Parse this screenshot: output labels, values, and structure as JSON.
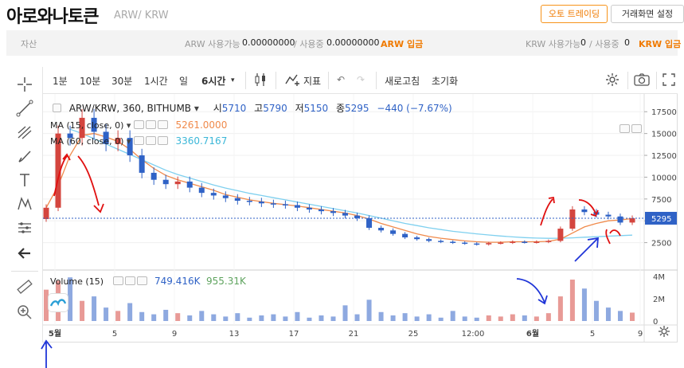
{
  "header": {
    "title": "아로와나토큰",
    "subtitle": "ARW/ KRW",
    "auto_trading_button": "오토 트레이딩",
    "fullscreen_button": "거래화면 설정"
  },
  "asset_bar": {
    "label": "자산",
    "arw_available_label": "ARW 사용가능",
    "arw_available": "0.00000000",
    "arw_inuse_label": "/ 사용중",
    "arw_inuse": "0.00000000",
    "arw_deposit": "ARW 입금",
    "krw_available_label": "KRW 사용가능",
    "krw_available": "0",
    "krw_inuse_label": "/ 사용중",
    "krw_inuse": "0",
    "krw_deposit": "KRW 입금"
  },
  "toolbar": {
    "intervals": [
      "1분",
      "10분",
      "30분",
      "1시간",
      "일",
      "6시간"
    ],
    "active_interval": "6시간",
    "indicator_label": "지표",
    "refresh_label": "새로고침",
    "reset_label": "초기화"
  },
  "legend": {
    "symbol": "ARW/KRW, 360, BITHUMB",
    "open_label": "시",
    "open": "5710",
    "high_label": "고",
    "high": "5790",
    "low_label": "저",
    "low": "5150",
    "close_label": "종",
    "close": "5295",
    "change": "−440 (−7.67%)",
    "ma15_label": "MA (15, close, 0)",
    "ma15_value": "5261.0000",
    "ma60_label": "MA (60, close, 0)",
    "ma60_value": "3360.7167",
    "volume_label": "Volume (15)",
    "volume_value": "749.416K",
    "volume_ma": "955.31K"
  },
  "colors": {
    "up": "#d4453e",
    "down": "#2f62c6",
    "ma15": "#f08a4b",
    "ma60": "#7fd0ef",
    "accent": "#f07a00"
  },
  "chart_data": {
    "type": "candlestick",
    "symbol": "ARW/KRW",
    "interval": "6시간",
    "price_axis": [
      2500,
      5000,
      7500,
      10000,
      12500,
      15000,
      17500
    ],
    "price_range": [
      0,
      18800
    ],
    "current_price": 5295,
    "volume_axis": [
      "0",
      "2M",
      "4M"
    ],
    "volume_range": [
      0,
      4200000
    ],
    "x_ticks": [
      "5월",
      "5",
      "9",
      "13",
      "17",
      "21",
      "25",
      "12:00",
      "6월",
      "5",
      "9"
    ],
    "x_tick_pos": [
      0.02,
      0.12,
      0.22,
      0.32,
      0.42,
      0.52,
      0.62,
      0.72,
      0.82,
      0.92,
      1.0
    ],
    "close_series": [
      6500,
      15000,
      14500,
      16800,
      15200,
      13800,
      14500,
      12500,
      10500,
      9700,
      9200,
      9500,
      8800,
      8200,
      7900,
      7600,
      7300,
      7200,
      7000,
      6900,
      6800,
      6500,
      6300,
      6100,
      5900,
      5600,
      5300,
      4200,
      3900,
      3500,
      3100,
      2900,
      2700,
      2600,
      2500,
      2400,
      2300,
      2450,
      2500,
      2600,
      2550,
      2600,
      2700,
      4100,
      6300,
      6000,
      5700,
      5500,
      4800,
      5295
    ],
    "ma15_series": [
      6500,
      9000,
      12500,
      14800,
      15000,
      14600,
      14100,
      13200,
      12000,
      11000,
      10200,
      9700,
      9300,
      8900,
      8500,
      8000,
      7700,
      7400,
      7200,
      7000,
      6850,
      6700,
      6500,
      6300,
      6100,
      5900,
      5600,
      5200,
      4700,
      4300,
      3900,
      3500,
      3200,
      3000,
      2850,
      2700,
      2600,
      2550,
      2550,
      2600,
      2600,
      2600,
      2650,
      2900,
      3600,
      4300,
      4700,
      5000,
      5100,
      5261
    ],
    "ma60_series": [
      null,
      null,
      15500,
      15000,
      14400,
      13800,
      13200,
      12600,
      12000,
      11400,
      10800,
      10300,
      9900,
      9500,
      9100,
      8750,
      8450,
      8150,
      7900,
      7650,
      7400,
      7150,
      6900,
      6650,
      6400,
      6150,
      5900,
      5600,
      5300,
      5000,
      4700,
      4450,
      4200,
      4000,
      3800,
      3650,
      3500,
      3380,
      3260,
      3160,
      3080,
      3020,
      2990,
      3000,
      3050,
      3120,
      3180,
      3240,
      3300,
      3360
    ],
    "volume_series": [
      2.8,
      3.6,
      3.9,
      1.8,
      2.2,
      1.2,
      0.9,
      1.6,
      0.8,
      0.6,
      1.0,
      0.7,
      0.5,
      0.9,
      0.6,
      0.4,
      0.7,
      0.3,
      0.5,
      0.6,
      0.4,
      0.8,
      0.3,
      0.5,
      0.4,
      1.4,
      0.6,
      1.9,
      0.8,
      0.5,
      0.7,
      0.4,
      0.6,
      0.3,
      0.9,
      0.4,
      0.3,
      0.5,
      0.4,
      0.6,
      0.5,
      0.4,
      0.7,
      2.2,
      3.7,
      2.9,
      1.8,
      1.2,
      0.9,
      0.75
    ]
  }
}
